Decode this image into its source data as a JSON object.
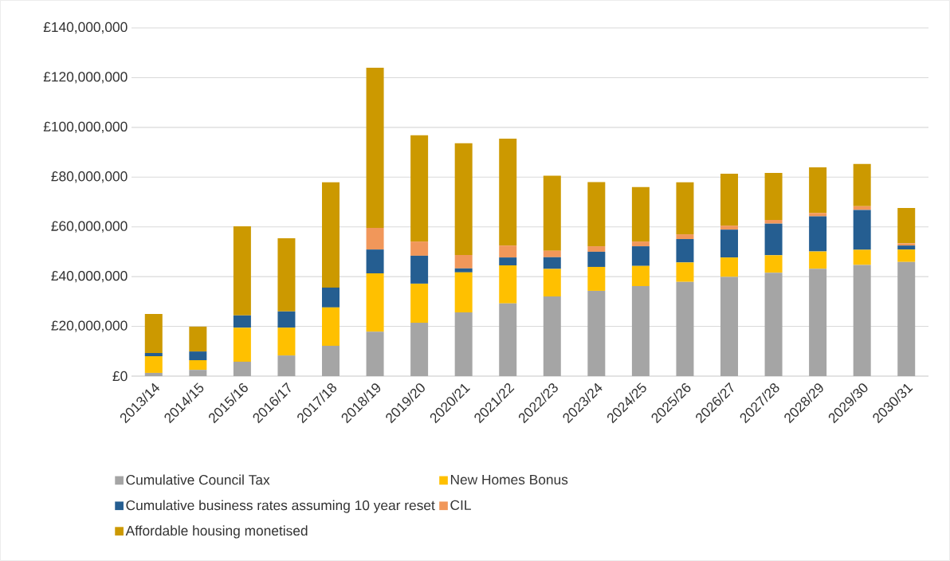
{
  "chart_data": {
    "type": "bar",
    "stacked": true,
    "categories": [
      "2013/14",
      "2014/15",
      "2015/16",
      "2016/17",
      "2017/18",
      "2018/19",
      "2019/20",
      "2020/21",
      "2021/22",
      "2022/23",
      "2023/24",
      "2024/25",
      "2025/26",
      "2026/27",
      "2027/28",
      "2028/29",
      "2029/30",
      "2030/31"
    ],
    "series": [
      {
        "name": "Cumulative Council Tax",
        "color": "#a5a5a5",
        "values": [
          1300000,
          2500000,
          5800000,
          8300000,
          12200000,
          17900000,
          21500000,
          25600000,
          29200000,
          32000000,
          34300000,
          36200000,
          37900000,
          39900000,
          41600000,
          43200000,
          44700000,
          45900000
        ]
      },
      {
        "name": "New Homes Bonus",
        "color": "#ffc000",
        "values": [
          6700000,
          3900000,
          13700000,
          11200000,
          15400000,
          23400000,
          15700000,
          16100000,
          15300000,
          11100000,
          9600000,
          8100000,
          7800000,
          7800000,
          7000000,
          6900000,
          6100000,
          5000000
        ]
      },
      {
        "name": "Cumulative business rates assuming 10 year reset",
        "color": "#255e91",
        "values": [
          1300000,
          3500000,
          4900000,
          6500000,
          8000000,
          9600000,
          11200000,
          1600000,
          3200000,
          4700000,
          6100000,
          7900000,
          9400000,
          11200000,
          12700000,
          14100000,
          16000000,
          1600000
        ]
      },
      {
        "name": "CIL",
        "color": "#f1975a",
        "values": [
          0,
          0,
          0,
          0,
          0,
          8700000,
          5700000,
          5400000,
          4800000,
          2600000,
          2200000,
          1900000,
          1900000,
          1600000,
          1500000,
          1400000,
          1500000,
          900000
        ]
      },
      {
        "name": "Affordable housing monetised",
        "color": "#cc9900",
        "values": [
          15700000,
          10000000,
          35800000,
          29400000,
          42300000,
          64400000,
          42700000,
          44900000,
          43000000,
          30200000,
          25800000,
          21900000,
          20900000,
          20900000,
          18900000,
          18300000,
          17000000,
          14200000
        ]
      }
    ],
    "ylim": [
      0,
      140000000
    ],
    "yticks": [
      {
        "value": 0,
        "label": "£0"
      },
      {
        "value": 20000000,
        "label": "£20,000,000"
      },
      {
        "value": 40000000,
        "label": "£40,000,000"
      },
      {
        "value": 60000000,
        "label": "£60,000,000"
      },
      {
        "value": 80000000,
        "label": "£80,000,000"
      },
      {
        "value": 100000000,
        "label": "£100,000,000"
      },
      {
        "value": 120000000,
        "label": "£120,000,000"
      },
      {
        "value": 140000000,
        "label": "£140,000,000"
      }
    ],
    "grid": "y",
    "legend": "bottom"
  }
}
